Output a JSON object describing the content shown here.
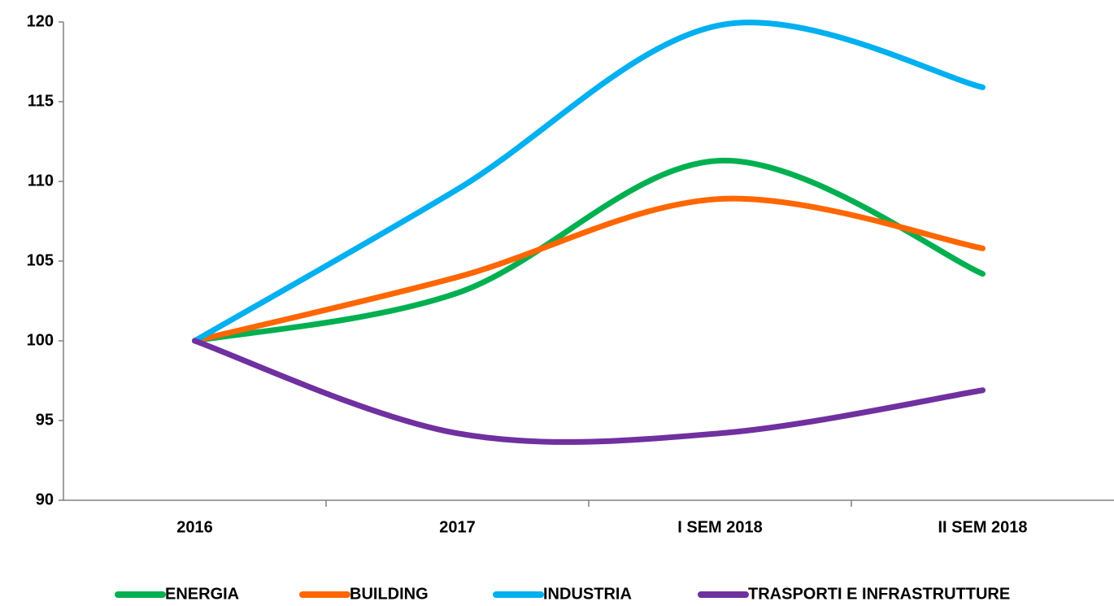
{
  "chart_data": {
    "type": "line",
    "categories": [
      "2016",
      "2017",
      "I SEM 2018",
      "II SEM 2018"
    ],
    "series": [
      {
        "name": "ENERGIA",
        "color": "#00b050",
        "values": [
          100,
          103.0,
          111.3,
          104.2
        ]
      },
      {
        "name": "BUILDING",
        "color": "#ff6600",
        "values": [
          100,
          104.0,
          108.9,
          105.8
        ]
      },
      {
        "name": "INDUSTRIA",
        "color": "#00b0f0",
        "values": [
          100,
          109.5,
          119.8,
          115.9
        ]
      },
      {
        "name": "TRASPORTI E INFRASTRUTTURE",
        "color": "#7030a0",
        "values": [
          100,
          94.2,
          94.2,
          96.9
        ]
      }
    ],
    "ylim": [
      90,
      120
    ],
    "yticks": [
      90,
      95,
      100,
      105,
      110,
      115,
      120
    ],
    "grid": false,
    "legend": "bottom"
  }
}
